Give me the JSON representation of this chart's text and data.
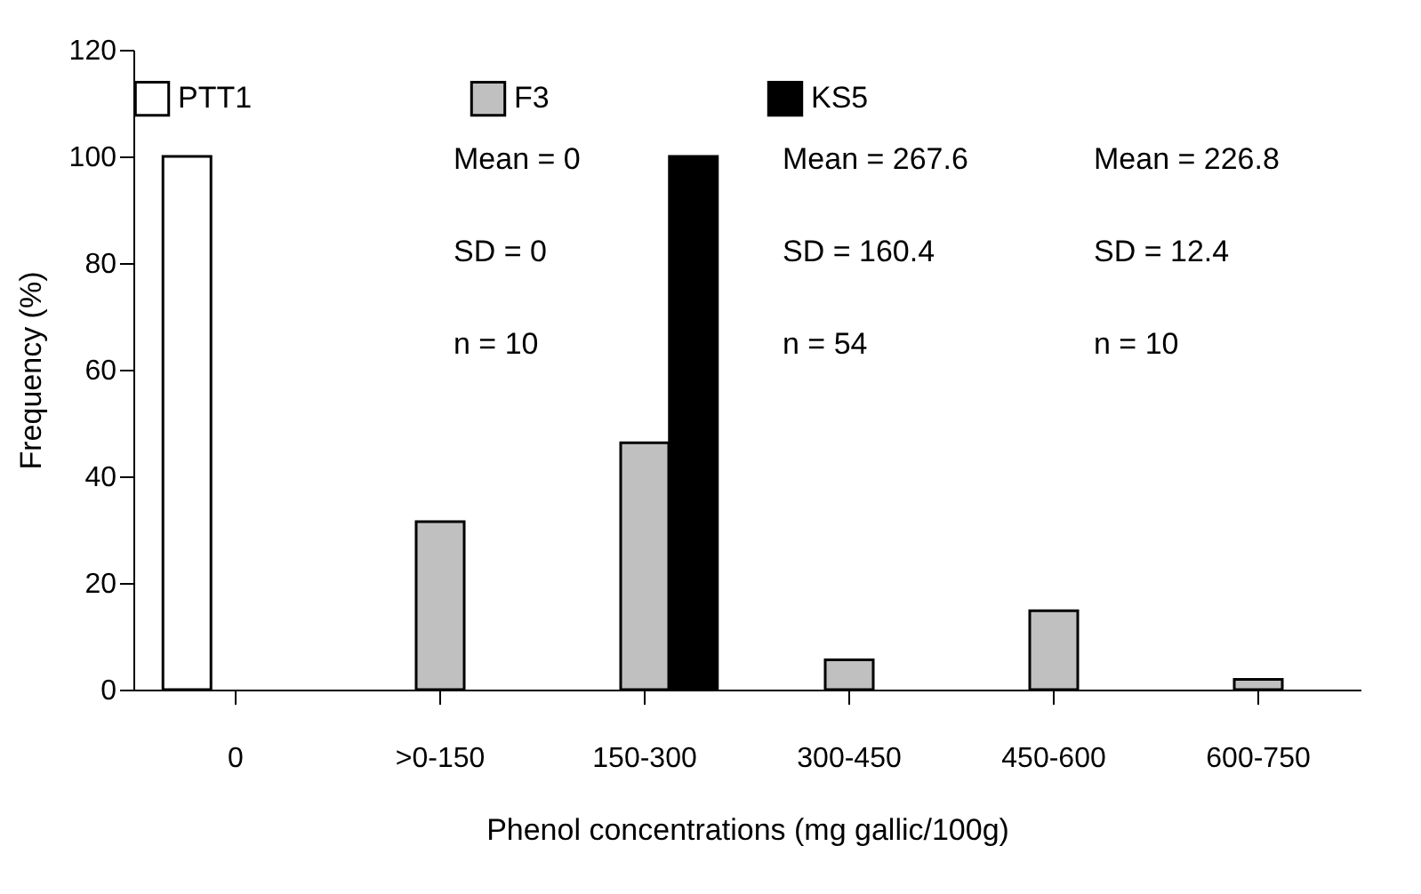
{
  "chart_data": {
    "type": "bar",
    "xlabel": "Phenol concentrations (mg gallic/100g)",
    "ylabel": "Frequency (%)",
    "categories": [
      "0",
      ">0-150",
      "150-300",
      "300-450",
      "450-600",
      "600-750"
    ],
    "series": [
      {
        "name": "PTT1",
        "color": "#ffffff",
        "values": [
          100,
          null,
          null,
          null,
          null,
          null
        ]
      },
      {
        "name": "F3",
        "color": "#c0c0c0",
        "values": [
          null,
          31.5,
          46.3,
          5.6,
          14.8,
          1.9
        ]
      },
      {
        "name": "KS5",
        "color": "#000000",
        "values": [
          null,
          null,
          100,
          null,
          null,
          null
        ]
      }
    ],
    "ylim": [
      0,
      120
    ],
    "yticks": [
      0,
      20,
      40,
      60,
      80,
      100,
      120
    ],
    "grid": false,
    "legend": "top",
    "annotations": [
      "Mean = 0",
      "SD = 0",
      "n = 10",
      "Mean = 267.6",
      "SD = 160.4",
      "n = 54",
      "Mean = 226.8",
      "SD = 12.4",
      "n = 10"
    ]
  }
}
